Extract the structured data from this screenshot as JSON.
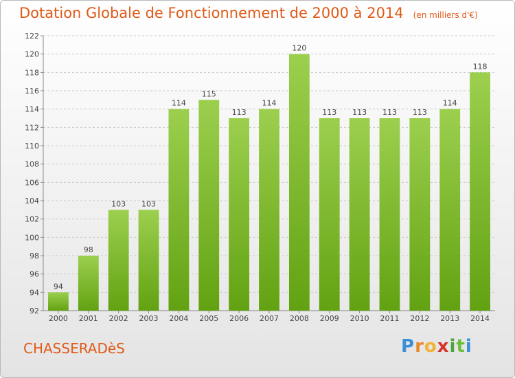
{
  "title": "Dotation Globale de Fonctionnement de 2000 à 2014",
  "unit_note": "(en milliers d'€)",
  "commune": "CHASSERADèS",
  "logo": {
    "letters": [
      "P",
      "r",
      "o",
      "x",
      "i",
      "t",
      "i"
    ],
    "colors": [
      "#3a8fd6",
      "#e8892a",
      "#f2b233",
      "#d8332b",
      "#4aa63a",
      "#6cbf3a",
      "#3a8fd6"
    ]
  },
  "chart_data": {
    "type": "bar",
    "title": "Dotation Globale de Fonctionnement de 2000 à 2014",
    "xlabel": "",
    "ylabel": "",
    "categories": [
      "2000",
      "2001",
      "2002",
      "2003",
      "2004",
      "2005",
      "2006",
      "2007",
      "2008",
      "2009",
      "2010",
      "2011",
      "2012",
      "2013",
      "2014"
    ],
    "values": [
      94,
      98,
      103,
      103,
      114,
      115,
      113,
      114,
      120,
      113,
      113,
      113,
      113,
      114,
      118
    ],
    "ylim": [
      92,
      122
    ],
    "ytick_step": 2,
    "grid": true,
    "bar_color_top": "#9ccf4e",
    "bar_color_bottom": "#62a212"
  }
}
